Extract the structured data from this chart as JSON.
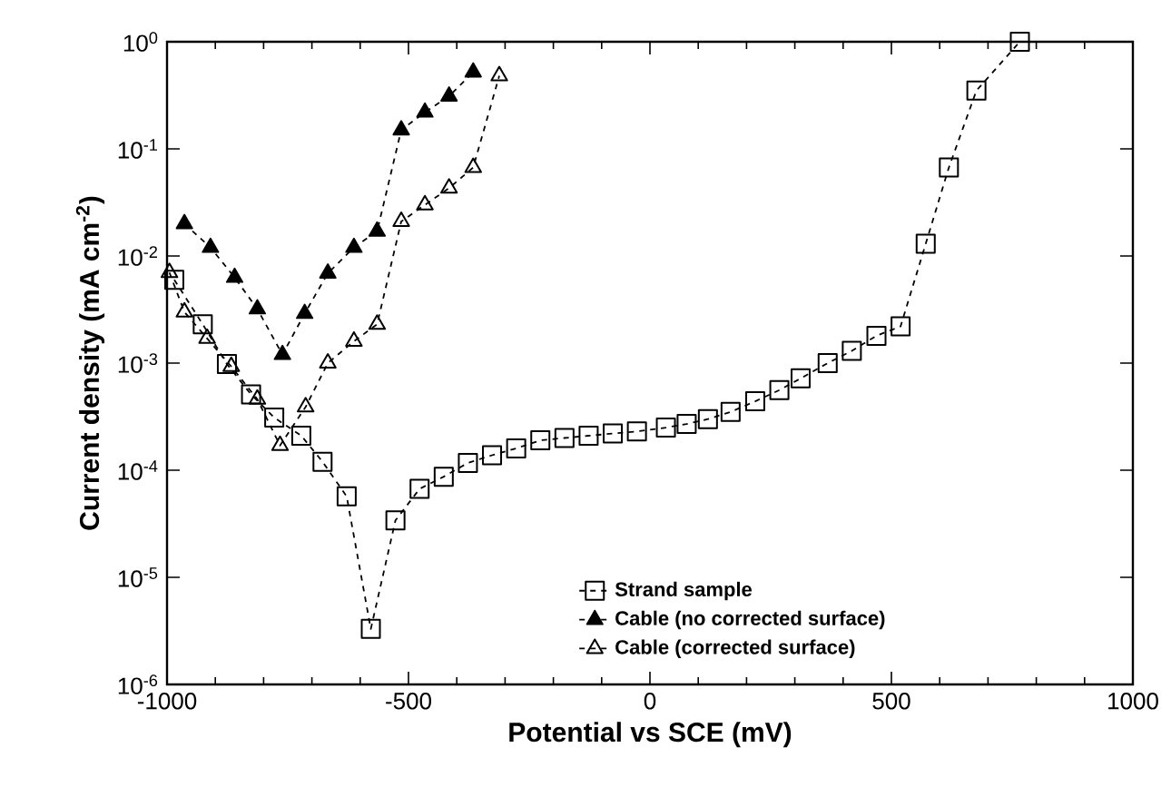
{
  "chart_data": {
    "type": "line",
    "xlabel": "Potential vs SCE (mV)",
    "ylabel": "Current density (mA cm$^{-2}$)",
    "log": "y",
    "xlim": [
      -1000,
      1000
    ],
    "xticks": [
      -1000,
      -500,
      0,
      500,
      1000
    ],
    "ylim": [
      1e-06,
      1
    ],
    "yticks": [
      {
        "value": 1e-06,
        "label": "10$^{-6}$"
      },
      {
        "value": 1e-05,
        "label": "10$^{-5}$"
      },
      {
        "value": 0.0001,
        "label": "10$^{-4}$"
      },
      {
        "value": 0.001,
        "label": "10$^{-3}$"
      },
      {
        "value": 0.01,
        "label": "10$^{-2}$"
      },
      {
        "value": 0.1,
        "label": "10$^{-1}$"
      },
      {
        "value": 1,
        "label": "10$^{0}$"
      }
    ],
    "grid": false,
    "legend": "bottom right",
    "line_style": "dashed",
    "series": [
      {
        "name": "Strand sample",
        "color": "#000000",
        "marker": "square",
        "x": [
          -985,
          -926,
          -876,
          -826,
          -778,
          -722,
          -678,
          -628,
          -578,
          -527,
          -477,
          -427,
          -377,
          -327,
          -277,
          -227,
          -177,
          -127,
          -77,
          -27,
          33,
          76,
          120,
          167,
          218,
          268,
          312,
          368,
          418,
          469,
          519,
          571,
          619,
          676,
          766
        ],
        "values": [
          0.006,
          0.0023,
          0.00098,
          0.00051,
          0.00031,
          0.00021,
          0.00012,
          5.7e-05,
          3.3e-06,
          3.4e-05,
          6.7e-05,
          8.7e-05,
          0.000117,
          0.000138,
          0.00016,
          0.00019,
          0.0002,
          0.00021,
          0.00022,
          0.00023,
          0.00025,
          0.00027,
          0.0003,
          0.00035,
          0.00044,
          0.00056,
          0.00072,
          0.001,
          0.0013,
          0.0018,
          0.0022,
          0.013,
          0.067,
          0.35,
          1.0
        ]
      },
      {
        "name": "Cable (no corrected surface)",
        "color": "#000000",
        "marker": "triangle",
        "x": [
          -964,
          -910,
          -860,
          -813,
          -761,
          -715,
          -667,
          -613,
          -565,
          -515,
          -466,
          -416,
          -366
        ],
        "values": [
          0.02,
          0.012,
          0.0063,
          0.0032,
          0.0012,
          0.0029,
          0.0069,
          0.012,
          0.017,
          0.15,
          0.22,
          0.31,
          0.52
        ]
      },
      {
        "name": "Cable (corrected surface)",
        "color": "#000000",
        "marker": "triangle",
        "x": [
          -995,
          -964,
          -917,
          -867,
          -813,
          -766,
          -713,
          -667,
          -613,
          -565,
          -515,
          -466,
          -416,
          -366,
          -312
        ],
        "values": [
          0.007,
          0.003,
          0.0017,
          0.00093,
          0.00046,
          0.00017,
          0.00039,
          0.001,
          0.0016,
          0.0023,
          0.021,
          0.03,
          0.043,
          0.067,
          0.48
        ]
      }
    ]
  }
}
